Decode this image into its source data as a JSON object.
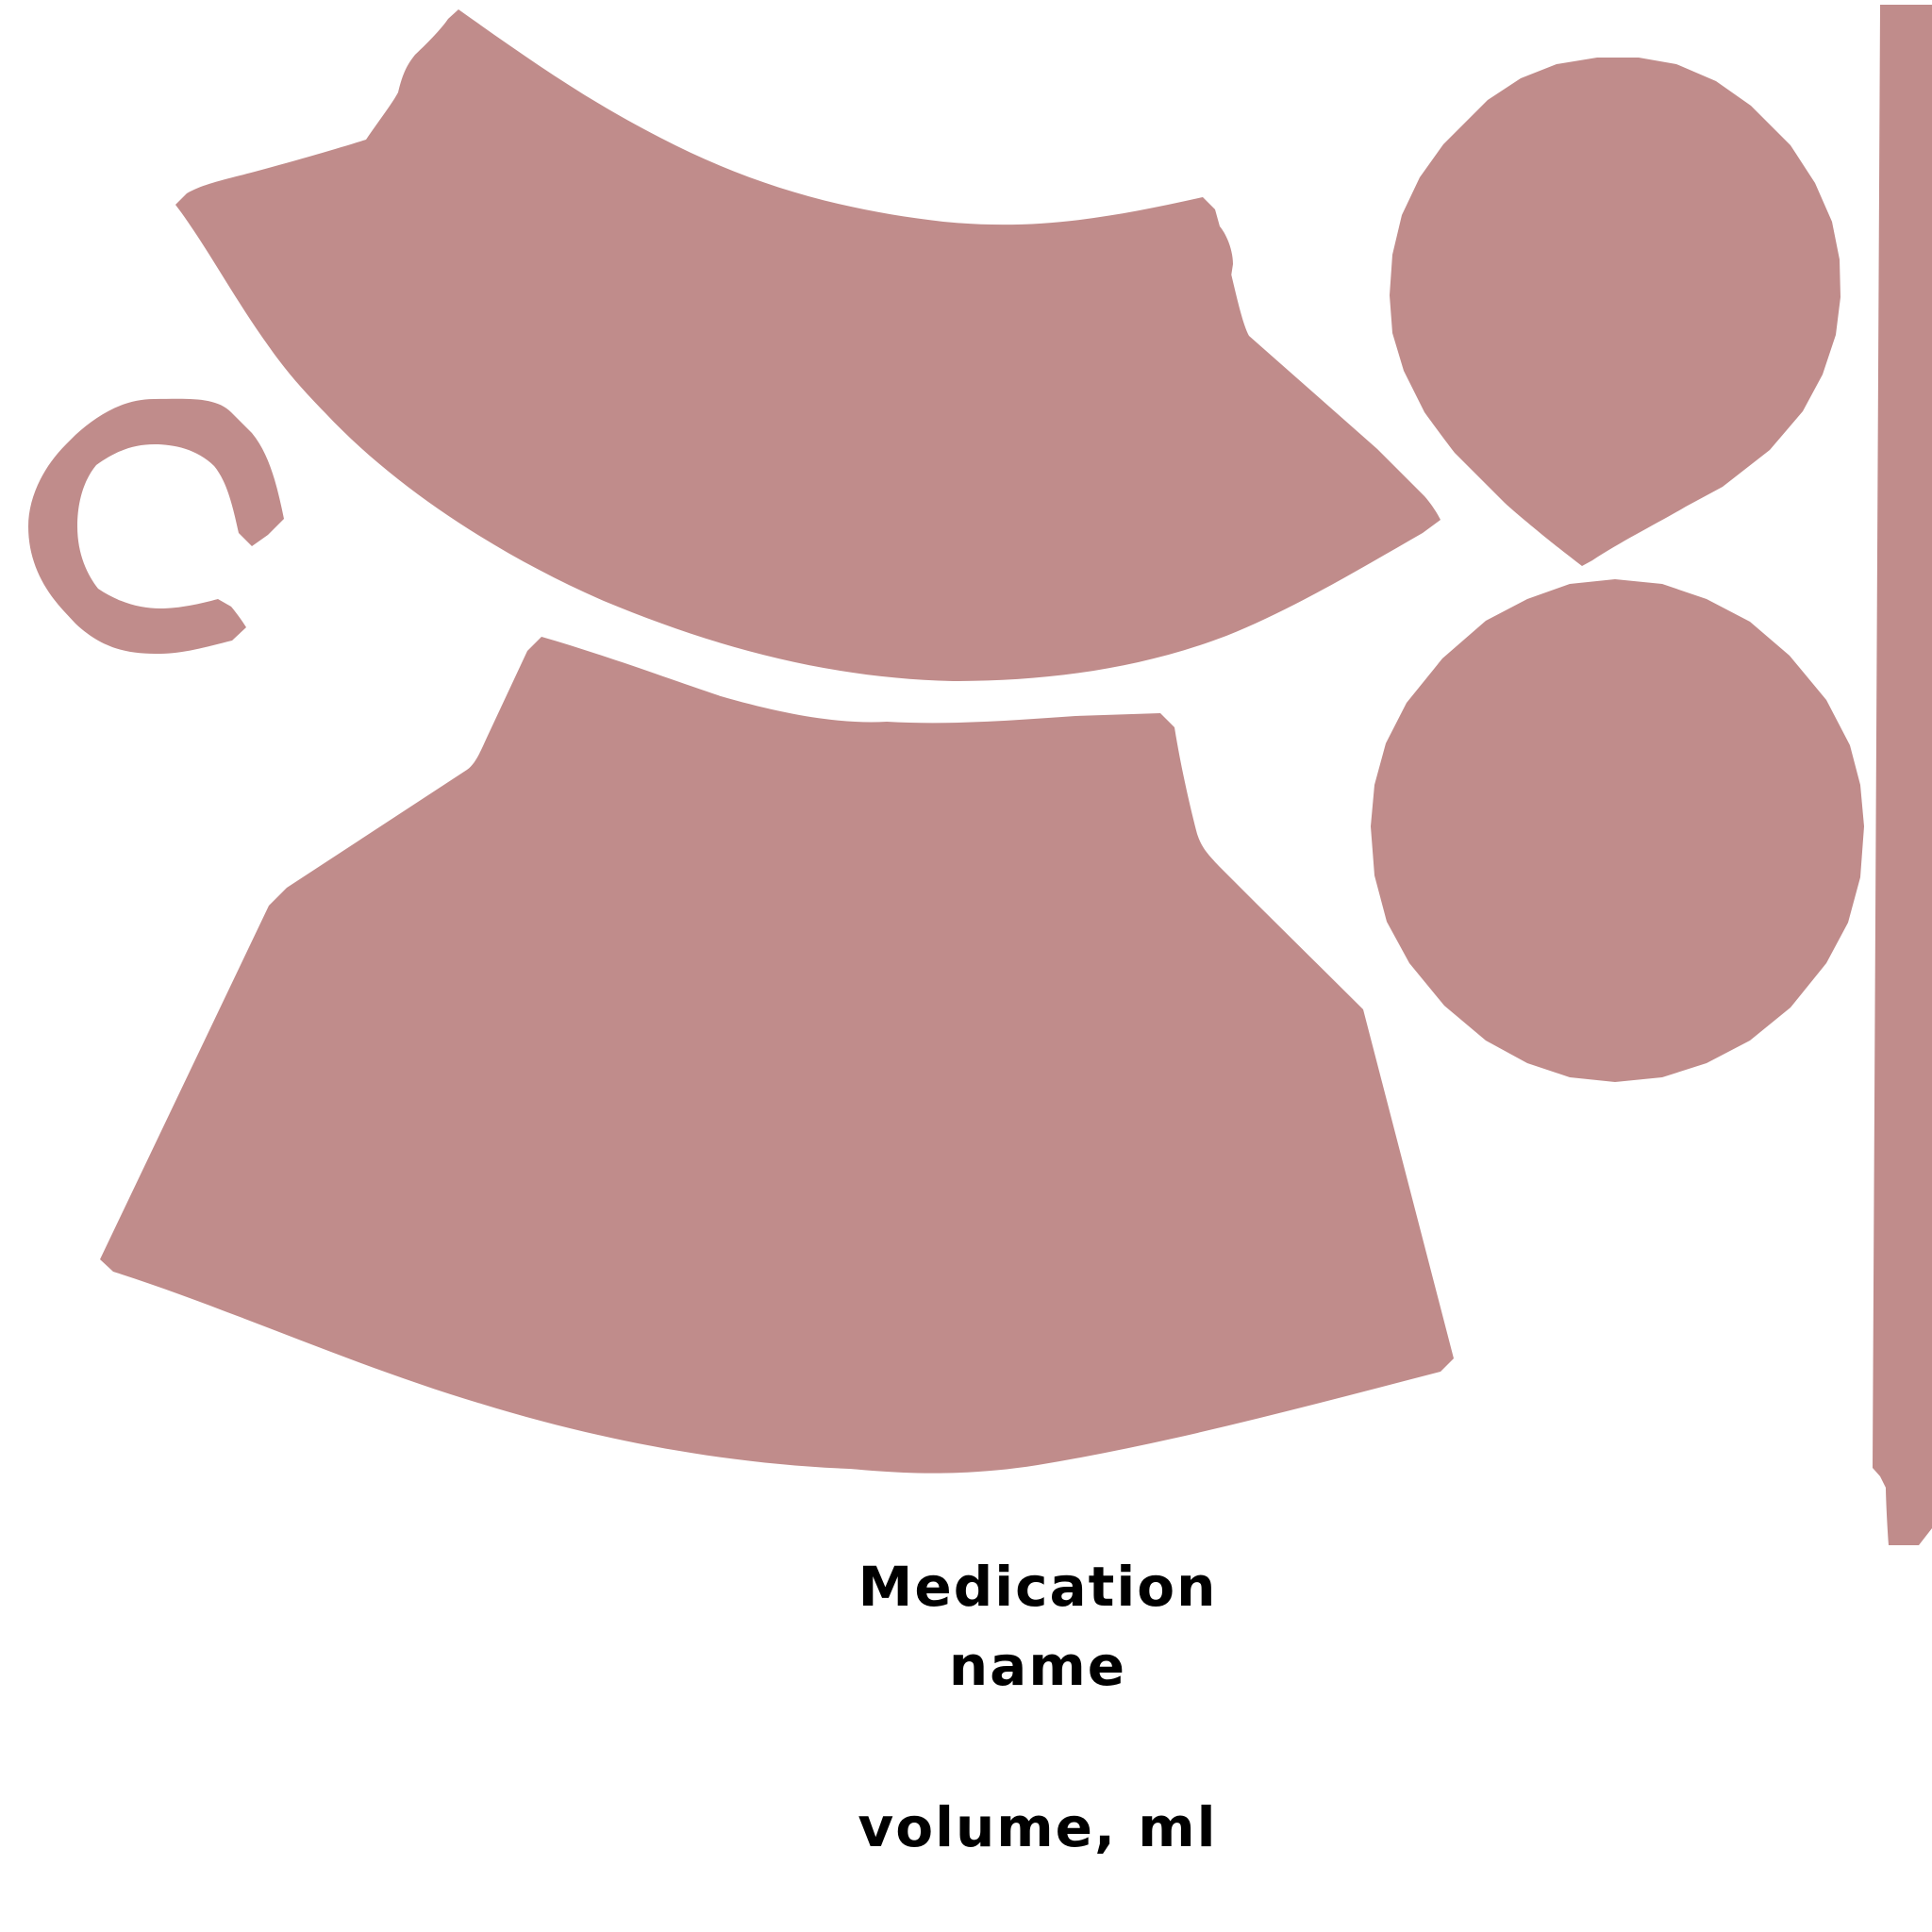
{
  "colors": {
    "shape_fill": "#c08c8b",
    "background": "#ffffff",
    "text": "#000000"
  },
  "label": {
    "line1": "Medication",
    "line2": "name",
    "line3": "volume, ml"
  }
}
